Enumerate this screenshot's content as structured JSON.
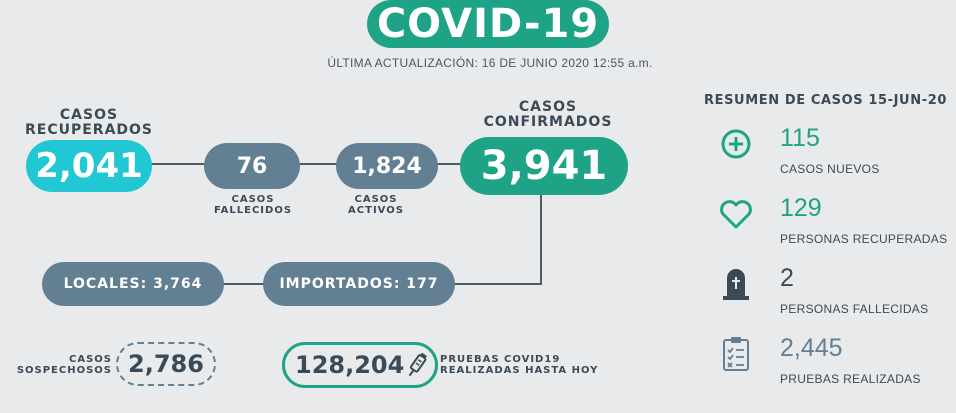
{
  "header": {
    "title": "COVID-19",
    "updated": "ÚLTIMA ACTUALIZACIÓN: 16 DE JUNIO 2020 12:55 a.m."
  },
  "flow": {
    "recuperados": {
      "label_line1": "CASOS",
      "label_line2": "RECUPERADOS",
      "value": "2,041"
    },
    "fallecidos": {
      "value": "76",
      "label_line1": "CASOS",
      "label_line2": "FALLECIDOS"
    },
    "activos": {
      "value": "1,824",
      "label_line1": "CASOS",
      "label_line2": "ACTIVOS"
    },
    "confirmados": {
      "label_line1": "CASOS",
      "label_line2": "CONFIRMADOS",
      "value": "3,941"
    },
    "locales": "LOCALES: 3,764",
    "importados": "IMPORTADOS: 177"
  },
  "sospechosos": {
    "label_line1": "CASOS",
    "label_line2": "SOSPECHOSOS",
    "value": "2,786"
  },
  "pruebas": {
    "value": "128,204",
    "label_line1": "PRUEBAS COVID19",
    "label_line2": "REALIZADAS HASTA HOY"
  },
  "summary": {
    "title": "RESUMEN DE CASOS 15-JUN-20",
    "items": [
      {
        "icon": "plus-circle-icon",
        "value": "115",
        "label": "CASOS NUEVOS",
        "color": "#1ea386"
      },
      {
        "icon": "heart-icon",
        "value": "129",
        "label": "PERSONAS RECUPERADAS",
        "color": "#1ea386"
      },
      {
        "icon": "tombstone-icon",
        "value": "2",
        "label": "PERSONAS FALLECIDAS",
        "color": "#3b4a57"
      },
      {
        "icon": "clipboard-checklist-icon",
        "value": "2,445",
        "label": "PRUEBAS REALIZADAS",
        "color": "#637f93"
      }
    ]
  },
  "colors": {
    "green": "#1ea386",
    "cyan": "#21c8d4",
    "slate": "#637f93",
    "dark": "#3b4a57",
    "background": "#e9eaeb"
  }
}
